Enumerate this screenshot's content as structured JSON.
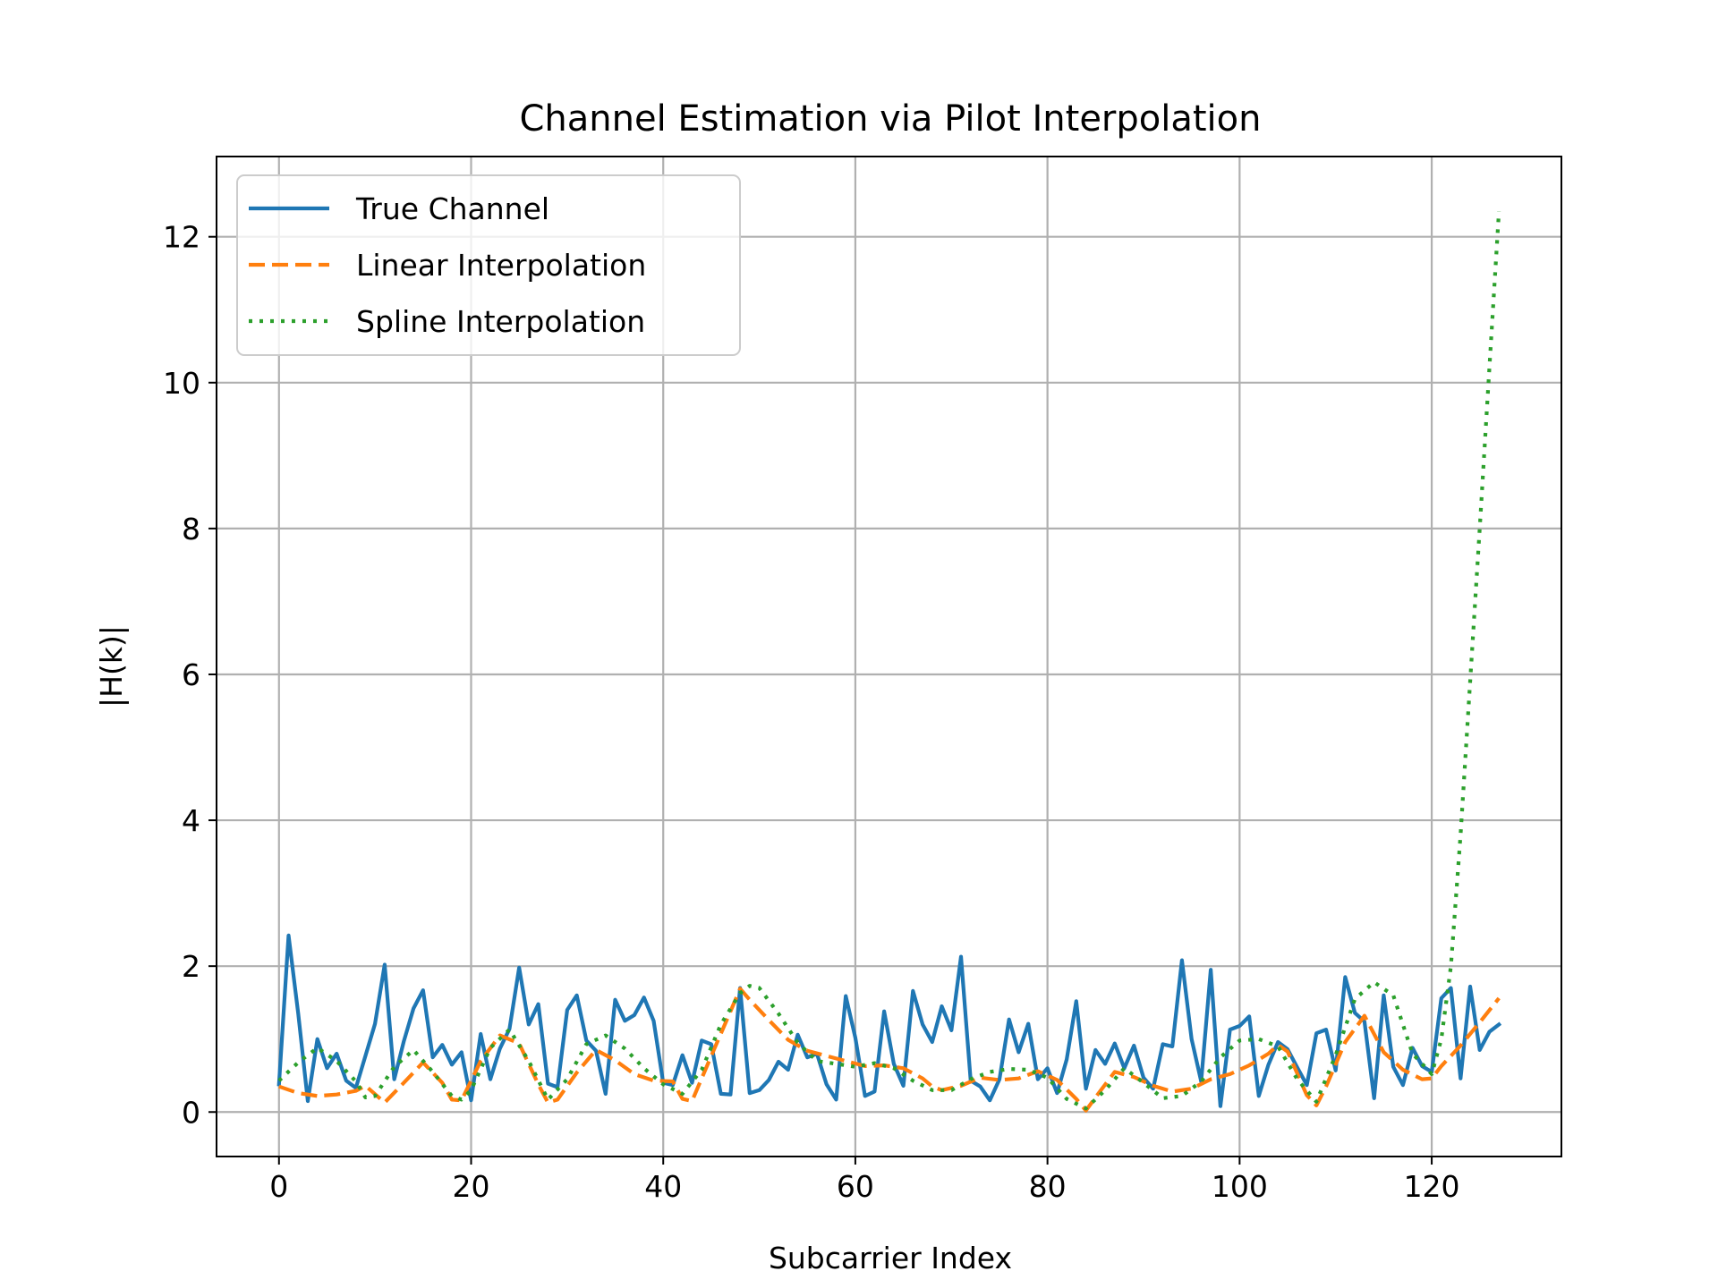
{
  "chart_data": {
    "type": "line",
    "title": "Channel Estimation via Pilot Interpolation",
    "xlabel": "Subcarrier Index",
    "ylabel": "|H(k)|",
    "xlim": [
      -6.5,
      133.5
    ],
    "ylim": [
      -0.61,
      13.1
    ],
    "xticks": [
      0,
      20,
      40,
      60,
      80,
      100,
      120
    ],
    "yticks": [
      0,
      2,
      4,
      6,
      8,
      10,
      12
    ],
    "grid": true,
    "legend_position": "upper-left",
    "series": [
      {
        "name": "True Channel",
        "color": "#1f77b4",
        "style": "solid",
        "x": [
          0,
          1,
          2,
          3,
          4,
          5,
          6,
          7,
          8,
          9,
          10,
          11,
          12,
          13,
          14,
          15,
          16,
          17,
          18,
          19,
          20,
          21,
          22,
          23,
          24,
          25,
          26,
          27,
          28,
          29,
          30,
          31,
          32,
          33,
          34,
          35,
          36,
          37,
          38,
          39,
          40,
          41,
          42,
          43,
          44,
          45,
          46,
          47,
          48,
          49,
          50,
          51,
          52,
          53,
          54,
          55,
          56,
          57,
          58,
          59,
          60,
          61,
          62,
          63,
          64,
          65,
          66,
          67,
          68,
          69,
          70,
          71,
          72,
          73,
          74,
          75,
          76,
          77,
          78,
          79,
          80,
          81,
          82,
          83,
          84,
          85,
          86,
          87,
          88,
          89,
          90,
          91,
          92,
          93,
          94,
          95,
          96,
          97,
          98,
          99,
          100,
          101,
          102,
          103,
          104,
          105,
          106,
          107,
          108,
          109,
          110,
          111,
          112,
          113,
          114,
          115,
          116,
          117,
          118,
          119,
          120,
          121,
          122,
          123,
          124,
          125,
          126,
          127
        ],
        "values": [
          0.38,
          2.42,
          1.35,
          0.15,
          1.0,
          0.6,
          0.8,
          0.43,
          0.33,
          0.77,
          1.21,
          2.02,
          0.45,
          0.97,
          1.42,
          1.67,
          0.75,
          0.92,
          0.65,
          0.82,
          0.16,
          1.07,
          0.45,
          0.87,
          1.14,
          1.98,
          1.2,
          1.48,
          0.39,
          0.34,
          1.4,
          1.6,
          0.98,
          0.84,
          0.25,
          1.54,
          1.25,
          1.33,
          1.57,
          1.25,
          0.4,
          0.37,
          0.78,
          0.4,
          0.98,
          0.93,
          0.25,
          0.24,
          1.7,
          0.26,
          0.3,
          0.44,
          0.69,
          0.58,
          1.06,
          0.75,
          0.8,
          0.38,
          0.17,
          1.59,
          1.02,
          0.22,
          0.28,
          1.38,
          0.66,
          0.36,
          1.66,
          1.2,
          0.96,
          1.45,
          1.12,
          2.13,
          0.43,
          0.35,
          0.16,
          0.45,
          1.27,
          0.82,
          1.21,
          0.45,
          0.6,
          0.26,
          0.72,
          1.52,
          0.32,
          0.85,
          0.66,
          0.94,
          0.6,
          0.91,
          0.47,
          0.32,
          0.93,
          0.9,
          2.08,
          1.0,
          0.42,
          1.95,
          0.08,
          1.13,
          1.18,
          1.31,
          0.22,
          0.65,
          0.96,
          0.86,
          0.61,
          0.37,
          1.08,
          1.13,
          0.57,
          1.85,
          1.36,
          1.24,
          0.19,
          1.6,
          0.62,
          0.37,
          0.88,
          0.63,
          0.55,
          1.56,
          1.7,
          0.46,
          1.72,
          0.85,
          1.1,
          1.2
        ]
      },
      {
        "name": "Linear Interpolation",
        "color": "#ff7f0e",
        "style": "dashed",
        "x": [
          0,
          2,
          4,
          6,
          8,
          9,
          11,
          13,
          15,
          17,
          18,
          19,
          21,
          23,
          25,
          27,
          28,
          29,
          31,
          33,
          35,
          37,
          39,
          41,
          42,
          43,
          45,
          47,
          48,
          49,
          51,
          53,
          55,
          57,
          59,
          61,
          63,
          65,
          67,
          68,
          69,
          71,
          73,
          75,
          77,
          79,
          81,
          83,
          84,
          85,
          87,
          89,
          91,
          93,
          95,
          97,
          99,
          101,
          103,
          104,
          105,
          107,
          108,
          109,
          111,
          113,
          115,
          117,
          119,
          120,
          121,
          123,
          125,
          127
        ],
        "values": [
          0.35,
          0.26,
          0.22,
          0.24,
          0.29,
          0.36,
          0.13,
          0.4,
          0.68,
          0.4,
          0.17,
          0.16,
          0.7,
          1.05,
          0.94,
          0.38,
          0.13,
          0.17,
          0.54,
          0.85,
          0.71,
          0.52,
          0.43,
          0.42,
          0.18,
          0.15,
          0.77,
          1.38,
          1.69,
          1.54,
          1.26,
          0.99,
          0.84,
          0.77,
          0.7,
          0.63,
          0.64,
          0.6,
          0.46,
          0.35,
          0.3,
          0.36,
          0.47,
          0.44,
          0.46,
          0.56,
          0.44,
          0.18,
          0.02,
          0.2,
          0.55,
          0.48,
          0.36,
          0.28,
          0.32,
          0.45,
          0.52,
          0.64,
          0.8,
          0.92,
          0.83,
          0.23,
          0.09,
          0.35,
          0.96,
          1.32,
          0.82,
          0.58,
          0.45,
          0.46,
          0.63,
          0.91,
          1.23,
          1.56
        ]
      },
      {
        "name": "Spline Interpolation",
        "color": "#2ca02c",
        "style": "dotted",
        "x": [
          0,
          2,
          4,
          6,
          8,
          9,
          10,
          12,
          14,
          16,
          18,
          19,
          20,
          22,
          24,
          26,
          28,
          30,
          32,
          34,
          36,
          38,
          40,
          42,
          44,
          46,
          48,
          49,
          50,
          52,
          54,
          56,
          58,
          60,
          62,
          64,
          66,
          68,
          70,
          72,
          74,
          76,
          78,
          80,
          82,
          84,
          86,
          88,
          90,
          92,
          94,
          96,
          98,
          100,
          102,
          104,
          106,
          108,
          110,
          112,
          114,
          116,
          118,
          120,
          121,
          122,
          123,
          124,
          125,
          126,
          127
        ],
        "values": [
          0.43,
          0.68,
          0.88,
          0.7,
          0.42,
          0.2,
          0.22,
          0.62,
          0.85,
          0.55,
          0.22,
          0.17,
          0.3,
          0.88,
          1.13,
          0.7,
          0.17,
          0.45,
          0.93,
          1.05,
          0.87,
          0.6,
          0.38,
          0.25,
          0.58,
          1.2,
          1.63,
          1.73,
          1.7,
          1.35,
          0.95,
          0.7,
          0.66,
          0.62,
          0.67,
          0.6,
          0.43,
          0.3,
          0.3,
          0.45,
          0.55,
          0.59,
          0.58,
          0.47,
          0.18,
          0.05,
          0.3,
          0.6,
          0.4,
          0.19,
          0.22,
          0.42,
          0.75,
          0.98,
          1.0,
          0.9,
          0.45,
          0.14,
          0.78,
          1.55,
          1.78,
          1.6,
          0.8,
          0.52,
          1.0,
          2.0,
          3.8,
          5.9,
          8.0,
          10.2,
          12.35
        ]
      }
    ]
  }
}
